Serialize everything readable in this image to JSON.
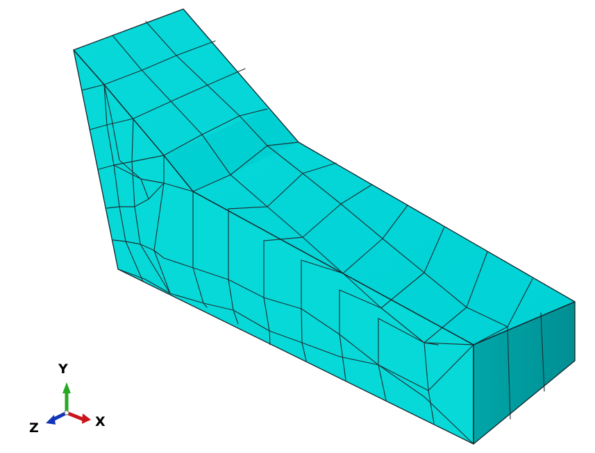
{
  "viewport": {
    "background_color": "#ffffff",
    "mesh": {
      "top_face_color": "#08d8d8",
      "top_face_shaded_color": "#00cbd0",
      "front_face_color": "#07d9d8",
      "end_face_color": "#009a9d",
      "edge_color": "#1f2f34"
    },
    "triad": {
      "x_label": "X",
      "y_label": "Y",
      "z_label": "Z",
      "x_color": "#c9151c",
      "y_color": "#25a923",
      "z_color": "#1235b8"
    }
  }
}
